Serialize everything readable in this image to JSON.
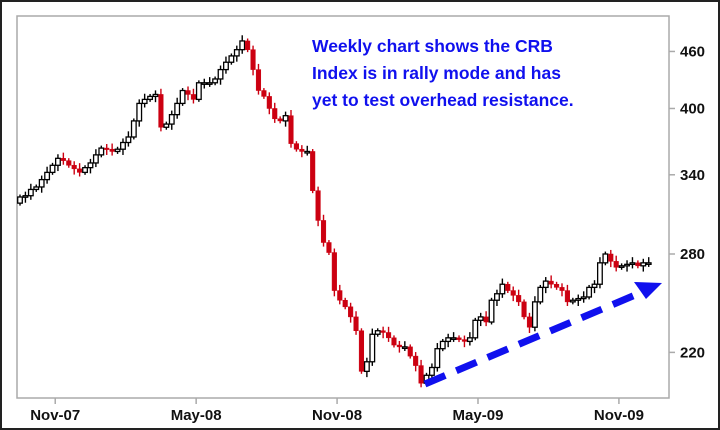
{
  "chart_data": {
    "type": "candlestick",
    "frequency": "weekly",
    "annotation": [
      "Weekly chart shows the CRB",
      "Index is in rally mode and has",
      "yet to test overhead resistance."
    ],
    "x_ticks": [
      "Nov-07",
      "May-08",
      "Nov-08",
      "May-09",
      "Nov-09"
    ],
    "y_ticks": [
      460,
      400,
      340,
      280,
      220
    ],
    "y_scale": "log",
    "ylim": [
      197,
      501
    ],
    "y_axis_side": "right",
    "grid": false,
    "trendline": {
      "style": "dashed",
      "direction": "rising",
      "arrowhead": true,
      "color": "#1010ee"
    },
    "colors": {
      "up": "#000000",
      "down": "#cc0011",
      "annotation": "#1010ee",
      "frame": "#aaaaaa"
    },
    "close": [
      322,
      323,
      328,
      330,
      336,
      342,
      348,
      354,
      352,
      348,
      345,
      342,
      346,
      350,
      357,
      363,
      362,
      360,
      362,
      368,
      373,
      388,
      405,
      409,
      412,
      414,
      382,
      385,
      394,
      405,
      418,
      414,
      409,
      426,
      426,
      426,
      430,
      440,
      448,
      455,
      462,
      472,
      462,
      440,
      418,
      412,
      400,
      390,
      388,
      393,
      367,
      362,
      360,
      360,
      327,
      304,
      288,
      281,
      256,
      250,
      246,
      240,
      232,
      210,
      215,
      230,
      232,
      231,
      228,
      224,
      223,
      223,
      218,
      213,
      204,
      208,
      212,
      222,
      226,
      228,
      228,
      227,
      226,
      228,
      238,
      240,
      237,
      250,
      254,
      260,
      256,
      253,
      249,
      240,
      234,
      249,
      258,
      262,
      260,
      258,
      256,
      249,
      250,
      251,
      252,
      258,
      260,
      274,
      280,
      275,
      271,
      272,
      273,
      274,
      272,
      274,
      274
    ]
  }
}
